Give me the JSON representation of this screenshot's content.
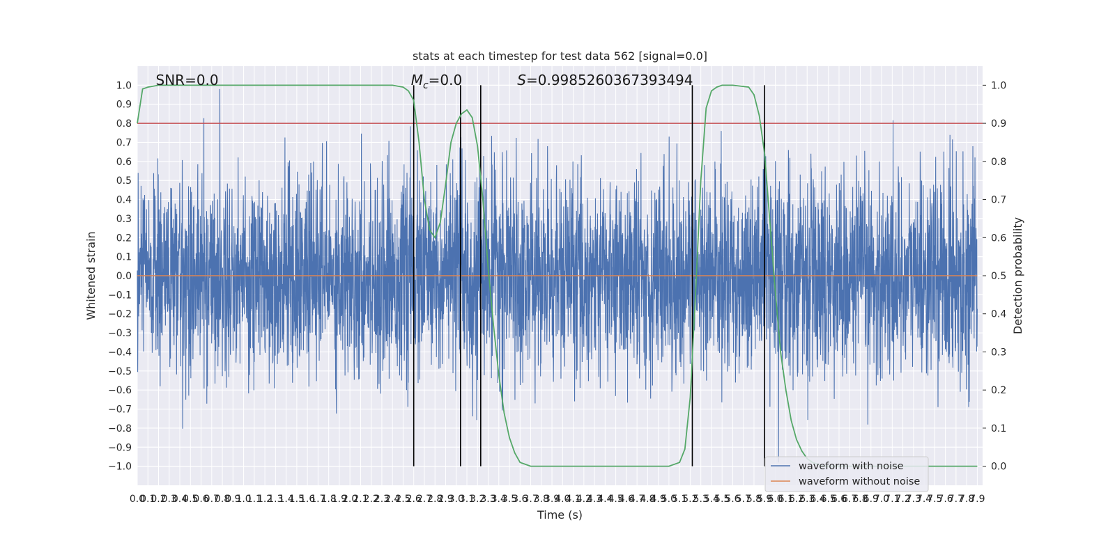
{
  "chart_data": {
    "type": "line",
    "title": "stats at each timestep for test data 562 [signal=0.0]",
    "xlabel": "Time (s)",
    "ylabel": "Whitened strain",
    "y2label": "Detection probability",
    "xlim": [
      0,
      7.95
    ],
    "ylim": [
      -1.1,
      1.1
    ],
    "y2lim": [
      -0.05,
      1.05
    ],
    "xtick_step": 0.1,
    "yticks": [
      -1.0,
      -0.9,
      -0.8,
      -0.7,
      -0.6,
      -0.5,
      -0.4,
      -0.3,
      -0.2,
      -0.1,
      0.0,
      0.1,
      0.2,
      0.3,
      0.4,
      0.5,
      0.6,
      0.7,
      0.8,
      0.9,
      1.0
    ],
    "yticks_labels": [
      "−1.0",
      "−0.9",
      "−0.8",
      "−0.7",
      "−0.6",
      "−0.5",
      "−0.4",
      "−0.3",
      "−0.2",
      "−0.1",
      "0.0",
      "0.1",
      "0.2",
      "0.3",
      "0.4",
      "0.5",
      "0.6",
      "0.7",
      "0.8",
      "0.9",
      "1.0"
    ],
    "y2ticks": [
      0.0,
      0.1,
      0.2,
      0.3,
      0.4,
      0.5,
      0.6,
      0.7,
      0.8,
      0.9,
      1.0
    ],
    "y2ticks_labels": [
      "0.0",
      "0.1",
      "0.2",
      "0.3",
      "0.4",
      "0.5",
      "0.6",
      "0.7",
      "0.8",
      "0.9",
      "1.0"
    ],
    "grid": true,
    "legend_position": "lower-right",
    "series": [
      {
        "name": "waveform with noise",
        "color": "#4c72b0",
        "note_range": [
          -1.0,
          1.0
        ]
      },
      {
        "name": "waveform without noise",
        "color": "#dd8452",
        "values_constant": 0.0
      },
      {
        "axis": "right",
        "color": "#55a868",
        "x": [
          0.0,
          0.05,
          0.1,
          0.2,
          0.4,
          0.8,
          1.2,
          1.6,
          2.0,
          2.3,
          2.4,
          2.5,
          2.55,
          2.6,
          2.65,
          2.7,
          2.75,
          2.8,
          2.85,
          2.9,
          2.95,
          3.0,
          3.05,
          3.1,
          3.15,
          3.2,
          3.25,
          3.3,
          3.35,
          3.4,
          3.45,
          3.5,
          3.55,
          3.6,
          3.65,
          3.7,
          3.75,
          3.8,
          3.9,
          4.0,
          4.5,
          5.0,
          5.1,
          5.15,
          5.2,
          5.25,
          5.3,
          5.35,
          5.4,
          5.45,
          5.5,
          5.6,
          5.75,
          5.8,
          5.85,
          5.9,
          5.95,
          6.0,
          6.05,
          6.1,
          6.15,
          6.2,
          6.25,
          6.3,
          6.35,
          6.4,
          6.45,
          6.5,
          6.6,
          7.0,
          7.5,
          7.9
        ],
        "values": [
          0.9,
          0.99,
          0.995,
          1.0,
          1.0,
          1.0,
          1.0,
          1.0,
          1.0,
          1.0,
          1.0,
          0.995,
          0.985,
          0.96,
          0.85,
          0.7,
          0.62,
          0.6,
          0.64,
          0.74,
          0.85,
          0.9,
          0.925,
          0.935,
          0.915,
          0.84,
          0.7,
          0.52,
          0.37,
          0.24,
          0.14,
          0.075,
          0.035,
          0.01,
          0.005,
          0.0,
          0.0,
          0.0,
          0.0,
          0.0,
          0.0,
          0.0,
          0.01,
          0.045,
          0.18,
          0.45,
          0.75,
          0.94,
          0.985,
          0.995,
          1.0,
          1.0,
          0.995,
          0.975,
          0.92,
          0.82,
          0.64,
          0.46,
          0.3,
          0.2,
          0.12,
          0.07,
          0.04,
          0.02,
          0.01,
          0.005,
          0.0,
          0.0,
          0.0,
          0.0,
          0.0,
          0.0
        ]
      }
    ],
    "hlines": [
      {
        "y": 0.8,
        "color": "#c44e52"
      }
    ],
    "vlines_x": [
      2.6,
      3.04,
      3.23,
      5.22,
      5.9
    ],
    "annotations": [
      {
        "text": "SNR=0.0",
        "x": 0.2,
        "y": 1.03
      },
      {
        "text": "=0.0",
        "symbol": "M",
        "subscript": "c",
        "x": 2.6,
        "y": 1.03
      },
      {
        "text": "=0.9985260367393494",
        "symbol": "S",
        "x": 3.6,
        "y": 1.03
      }
    ],
    "x_tick_labels_note": "labels every 0.1 s from 0.0 to 7.9"
  }
}
